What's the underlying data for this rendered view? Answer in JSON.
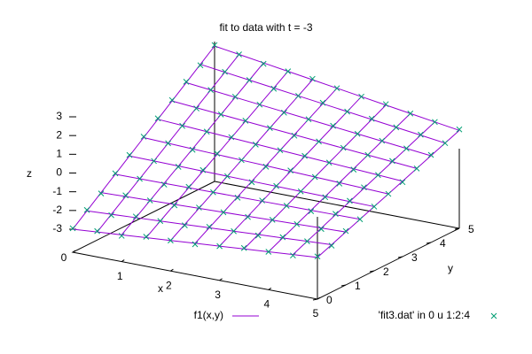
{
  "chart_data": {
    "type": "surface3d",
    "title": "fit to data with t = -3",
    "xlabel": "x",
    "ylabel": "y",
    "zlabel": "z",
    "xlim": [
      0,
      5
    ],
    "ylim": [
      0,
      5
    ],
    "zlim": [
      -3,
      3
    ],
    "xticks": [
      0,
      1,
      2,
      3,
      4,
      5
    ],
    "yticks": [
      0,
      1,
      2,
      3,
      4,
      5
    ],
    "zticks": [
      -3,
      -2,
      -1,
      0,
      1,
      2,
      3
    ],
    "series": [
      {
        "name": "f1(x,y)",
        "type": "surface",
        "color": "#9400d3",
        "x": [
          0,
          0.5,
          1,
          1.5,
          2,
          2.5,
          3,
          3.5,
          4,
          4.5,
          5
        ],
        "y": [
          0,
          0.5,
          1,
          1.5,
          2,
          2.5,
          3,
          3.5,
          4,
          4.5,
          5
        ],
        "z": [
          [
            -3,
            -2.9,
            -2.8,
            -2.7,
            -2.6,
            -2.5,
            -2.4,
            -2.3,
            -2.2,
            -2.1,
            -2
          ],
          [
            -2.4,
            -2.33,
            -2.26,
            -2.19,
            -2.12,
            -2.05,
            -1.98,
            -1.91,
            -1.84,
            -1.77,
            -1.7
          ],
          [
            -1.8,
            -1.76,
            -1.72,
            -1.68,
            -1.64,
            -1.6,
            -1.56,
            -1.52,
            -1.48,
            -1.44,
            -1.4
          ],
          [
            -1.2,
            -1.19,
            -1.18,
            -1.17,
            -1.16,
            -1.15,
            -1.14,
            -1.13,
            -1.12,
            -1.11,
            -1.1
          ],
          [
            -0.6,
            -0.62,
            -0.64,
            -0.66,
            -0.68,
            -0.7,
            -0.72,
            -0.74,
            -0.76,
            -0.78,
            -0.8
          ],
          [
            0,
            -0.05,
            -0.1,
            -0.15,
            -0.2,
            -0.25,
            -0.3,
            -0.35,
            -0.4,
            -0.45,
            -0.5
          ],
          [
            0.6,
            0.52,
            0.44,
            0.36,
            0.28,
            0.2,
            0.12,
            0.04,
            -0.04,
            -0.12,
            -0.2
          ],
          [
            1.2,
            1.09,
            0.98,
            0.87,
            0.76,
            0.65,
            0.54,
            0.43,
            0.32,
            0.21,
            0.1
          ],
          [
            1.8,
            1.66,
            1.52,
            1.38,
            1.24,
            1.1,
            0.96,
            0.82,
            0.68,
            0.54,
            0.4
          ],
          [
            2.4,
            2.23,
            2.06,
            1.89,
            1.72,
            1.55,
            1.38,
            1.21,
            1.04,
            0.87,
            0.7
          ],
          [
            3,
            2.8,
            2.6,
            2.4,
            2.2,
            2,
            1.8,
            1.6,
            1.4,
            1.2,
            1
          ]
        ]
      },
      {
        "name": "'fit3.dat' in 0 u 1:2:4",
        "type": "points",
        "color": "#009e73",
        "x": [
          0,
          0.5,
          1,
          1.5,
          2,
          2.5,
          3,
          3.5,
          4,
          4.5,
          5
        ],
        "y": [
          0,
          0.5,
          1,
          1.5,
          2,
          2.5,
          3,
          3.5,
          4,
          4.5,
          5
        ],
        "z": [
          [
            -2.95,
            -2.85,
            -2.85,
            -2.65,
            -2.6,
            -2.55,
            -2.4,
            -2.25,
            -2.2,
            -2.15,
            -1.95
          ],
          [
            -2.35,
            -2.38,
            -2.2,
            -2.19,
            -2.17,
            -2.0,
            -1.98,
            -1.96,
            -1.8,
            -1.77,
            -1.75
          ],
          [
            -1.85,
            -1.7,
            -1.72,
            -1.73,
            -1.6,
            -1.6,
            -1.6,
            -1.5,
            -1.48,
            -1.49,
            -1.35
          ],
          [
            -1.15,
            -1.19,
            -1.25,
            -1.12,
            -1.16,
            -1.2,
            -1.1,
            -1.13,
            -1.17,
            -1.06,
            -1.1
          ],
          [
            -0.55,
            -0.62,
            -0.68,
            -0.6,
            -0.68,
            -0.75,
            -0.7,
            -0.74,
            -0.8,
            -0.74,
            -0.8
          ],
          [
            0.05,
            -0.05,
            -0.15,
            -0.1,
            -0.2,
            -0.3,
            -0.25,
            -0.35,
            -0.45,
            -0.4,
            -0.5
          ],
          [
            0.65,
            0.5,
            0.44,
            0.4,
            0.25,
            0.2,
            0.15,
            0.04,
            -0.08,
            -0.12,
            -0.25
          ],
          [
            1.25,
            1.05,
            0.98,
            0.9,
            0.76,
            0.6,
            0.54,
            0.45,
            0.32,
            0.25,
            0.1
          ],
          [
            1.85,
            1.66,
            1.55,
            1.38,
            1.2,
            1.1,
            1.0,
            0.82,
            0.7,
            0.54,
            0.45
          ],
          [
            2.35,
            2.25,
            2.06,
            1.85,
            1.72,
            1.6,
            1.38,
            1.25,
            1.04,
            0.9,
            0.7
          ],
          [
            3.05,
            2.8,
            2.55,
            2.4,
            2.25,
            2.0,
            1.8,
            1.65,
            1.4,
            1.2,
            1.05
          ]
        ]
      }
    ]
  }
}
